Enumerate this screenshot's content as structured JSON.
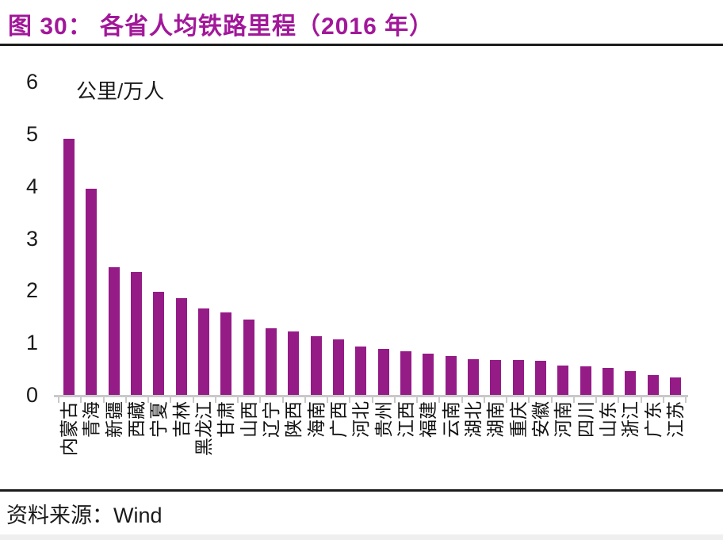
{
  "header": {
    "title": "图 30： 各省人均铁路里程（2016 年）"
  },
  "footer": {
    "source_label": "资料来源：",
    "source_value": "Wind"
  },
  "colors": {
    "title_accent": "#A2189A",
    "bar": "#951B87",
    "axis": "#C9C9C9",
    "rule": "#1C1C1C"
  },
  "chart_data": {
    "type": "bar",
    "title": "各省人均铁路里程（2016 年）",
    "unit_label": "公里/万人",
    "xlabel": "",
    "ylabel": "公里/万人",
    "ylim": [
      0,
      6
    ],
    "yticks": [
      0,
      1,
      2,
      3,
      4,
      5,
      6
    ],
    "grid": false,
    "legend": "none",
    "bar_color": "#951B87",
    "categories": [
      "内蒙古",
      "青海",
      "新疆",
      "西藏",
      "宁夏",
      "吉林",
      "黑龙江",
      "甘肃",
      "山西",
      "辽宁",
      "陕西",
      "海南",
      "广西",
      "河北",
      "贵州",
      "江西",
      "福建",
      "云南",
      "湖北",
      "湖南",
      "重庆",
      "安徽",
      "河南",
      "四川",
      "山东",
      "浙江",
      "广东",
      "江苏"
    ],
    "values": [
      4.9,
      3.95,
      2.45,
      2.35,
      1.97,
      1.85,
      1.65,
      1.58,
      1.45,
      1.28,
      1.21,
      1.13,
      1.07,
      0.93,
      0.88,
      0.84,
      0.79,
      0.74,
      0.69,
      0.67,
      0.67,
      0.65,
      0.56,
      0.54,
      0.52,
      0.45,
      0.38,
      0.33
    ]
  }
}
